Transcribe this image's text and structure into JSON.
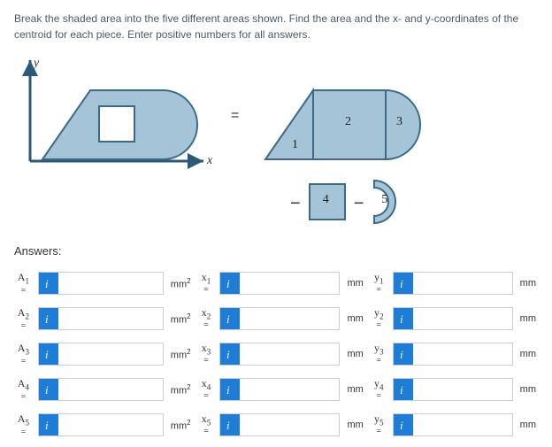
{
  "question": "Break the shaded area into the five different areas shown. Find the area and the x- and y-coordinates of the centroid for each piece. Enter positive numbers for all answers.",
  "axis": {
    "y": "y",
    "x": "x",
    "eq": "="
  },
  "shape": {
    "fill": "#a6c4d7",
    "stroke": "#3a6a88",
    "num1": "1",
    "num2": "2",
    "num3": "3",
    "num4": "4",
    "num5": "5"
  },
  "minus": "−",
  "answers_label": "Answers:",
  "unit_area": "mm",
  "unit_len": "mm",
  "rows": [
    {
      "A": "A",
      "i": "1",
      "x": "x",
      "y": "y"
    },
    {
      "A": "A",
      "i": "2",
      "x": "x",
      "y": "y"
    },
    {
      "A": "A",
      "i": "3",
      "x": "x",
      "y": "y"
    },
    {
      "A": "A",
      "i": "4",
      "x": "x",
      "y": "y"
    },
    {
      "A": "A",
      "i": "5",
      "x": "x",
      "y": "y"
    }
  ],
  "eq": "="
}
